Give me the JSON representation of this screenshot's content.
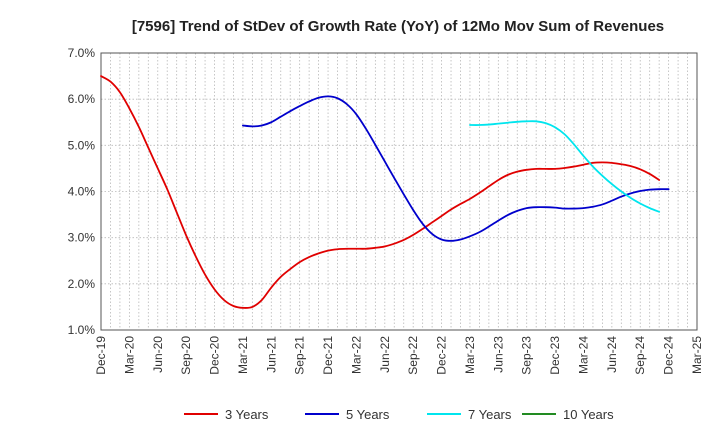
{
  "chart_data": {
    "type": "line",
    "title": "[7596]  Trend of StDev of Growth Rate (YoY) of 12Mo Mov Sum of Revenues",
    "xlabel": "",
    "ylabel": "",
    "ylim": [
      1.0,
      7.0
    ],
    "y_ticks": [
      "1.0%",
      "2.0%",
      "3.0%",
      "4.0%",
      "5.0%",
      "6.0%",
      "7.0%"
    ],
    "y_tick_values": [
      1,
      2,
      3,
      4,
      5,
      6,
      7
    ],
    "x_start_months": 0,
    "x_end_months": 63,
    "x_ticks": [
      "Dec-19",
      "Mar-20",
      "Jun-20",
      "Sep-20",
      "Dec-20",
      "Mar-21",
      "Jun-21",
      "Sep-21",
      "Dec-21",
      "Mar-22",
      "Jun-22",
      "Sep-22",
      "Dec-22",
      "Mar-23",
      "Jun-23",
      "Sep-23",
      "Dec-23",
      "Mar-24",
      "Jun-24",
      "Sep-24",
      "Dec-24",
      "Mar-25"
    ],
    "grid": true,
    "legend_position": "bottom",
    "series": [
      {
        "name": "3 Years",
        "color": "#e00000",
        "start_month": 0,
        "values": [
          6.5,
          6.38,
          6.15,
          5.8,
          5.4,
          4.95,
          4.5,
          4.05,
          3.55,
          3.05,
          2.6,
          2.2,
          1.88,
          1.65,
          1.52,
          1.48,
          1.5,
          1.65,
          1.92,
          2.15,
          2.32,
          2.47,
          2.58,
          2.66,
          2.72,
          2.75,
          2.76,
          2.76,
          2.76,
          2.78,
          2.81,
          2.87,
          2.95,
          3.06,
          3.19,
          3.33,
          3.47,
          3.61,
          3.73,
          3.84,
          3.97,
          4.11,
          4.25,
          4.36,
          4.43,
          4.47,
          4.49,
          4.49,
          4.49,
          4.51,
          4.54,
          4.58,
          4.62,
          4.63,
          4.62,
          4.59,
          4.55,
          4.48,
          4.38,
          4.25
        ]
      },
      {
        "name": "5 Years",
        "color": "#0000cc",
        "start_month": 15,
        "values": [
          5.43,
          5.41,
          5.43,
          5.5,
          5.62,
          5.74,
          5.85,
          5.95,
          6.03,
          6.06,
          6.02,
          5.89,
          5.67,
          5.36,
          5.01,
          4.65,
          4.29,
          3.94,
          3.6,
          3.3,
          3.08,
          2.96,
          2.93,
          2.96,
          3.03,
          3.12,
          3.24,
          3.37,
          3.49,
          3.58,
          3.64,
          3.66,
          3.66,
          3.65,
          3.63,
          3.63,
          3.64,
          3.67,
          3.72,
          3.8,
          3.89,
          3.96,
          4.01,
          4.04,
          4.05,
          4.05
        ]
      },
      {
        "name": "7 Years",
        "color": "#00e5ee",
        "start_month": 39,
        "values": [
          5.44,
          5.44,
          5.45,
          5.47,
          5.49,
          5.51,
          5.52,
          5.52,
          5.48,
          5.39,
          5.24,
          5.02,
          4.77,
          4.54,
          4.34,
          4.16,
          4.0,
          3.86,
          3.74,
          3.64,
          3.56
        ]
      },
      {
        "name": "10 Years",
        "color": "#228b22",
        "start_month": 0,
        "values": []
      }
    ]
  }
}
